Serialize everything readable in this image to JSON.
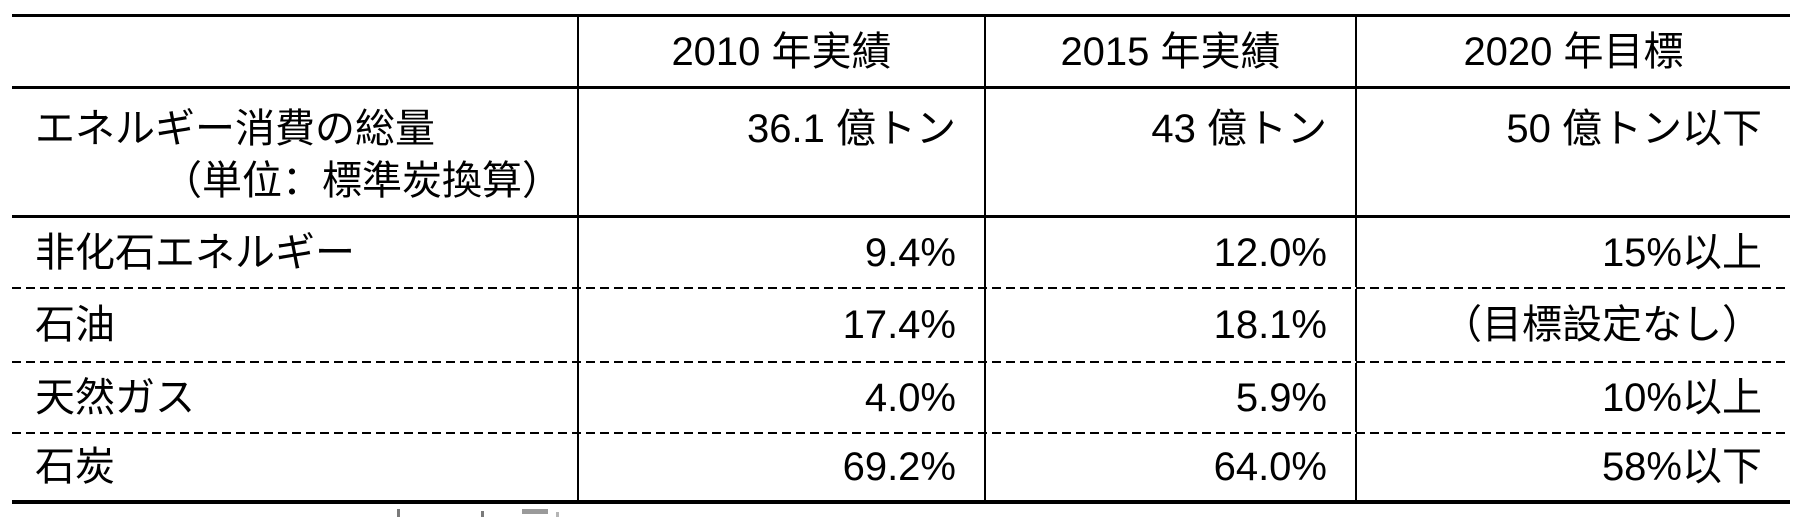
{
  "page": {
    "background": "#ffffff",
    "line_color": "#000000"
  },
  "table": {
    "columns": [
      {
        "label": ""
      },
      {
        "label": "2010 年実績"
      },
      {
        "label": "2015 年実績"
      },
      {
        "label": "2020 年目標"
      }
    ],
    "rows": [
      {
        "label": "エネルギー消費の総量",
        "label_line2": "（単位：標準炭換算）",
        "v2010": "36.1 億トン",
        "v2015": "43 億トン",
        "v2020": "50 億トン以下"
      },
      {
        "label": "非化石エネルギー",
        "v2010": "9.4%",
        "v2015": "12.0%",
        "v2020": "15%以上"
      },
      {
        "label": "石油",
        "v2010": "17.4%",
        "v2015": "18.1%",
        "v2020": "（目標設定なし）"
      },
      {
        "label": "天然ガス",
        "v2010": "4.0%",
        "v2015": "5.9%",
        "v2020": "10%以上"
      },
      {
        "label": "石炭",
        "v2010": "69.2%",
        "v2015": "64.0%",
        "v2020": "58%以下"
      }
    ]
  }
}
